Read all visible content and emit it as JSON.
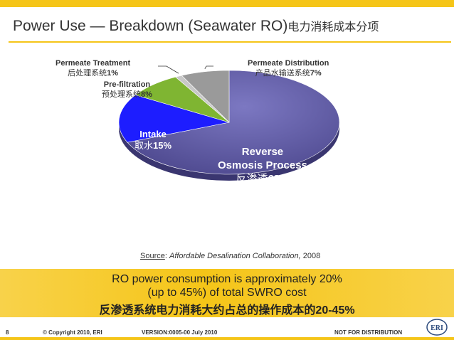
{
  "slide": {
    "title": "Power Use — Breakdown (Seawater RO)",
    "title_cn": "电力消耗成本分项",
    "source_label": "Source",
    "source_text": "Affordable Desalination Collaboration,",
    "source_year": "2008",
    "summary_line1": "RO power consumption is approximately 20%",
    "summary_line2": "(up to 45%) of total SWRO cost",
    "summary_line3": "反渗透系统电力消耗大约占总的操作成本的20-45%",
    "page_number": "8",
    "copyright": "© Copyright 2010, ERI",
    "version": "VERSION:0005-00 July 2010",
    "distribution": "NOT FOR DISTRIBUTION",
    "logo_text": "ERI",
    "colors": {
      "accent": "#f5c518",
      "ro": "#5f5aa0",
      "intake": "#1d1dff",
      "prefiltration": "#7fb532",
      "treatment": "#c8c8c8",
      "distribution": "#9a9a9a"
    }
  },
  "chart_data": {
    "type": "pie",
    "slices": [
      {
        "key": "ro",
        "label": "Reverse",
        "label2": "Osmosis Process",
        "label_cn": "反渗透",
        "value": 68,
        "color": "#5f5aa0"
      },
      {
        "key": "intake",
        "label": "Intake",
        "label_cn": "取水",
        "value": 15,
        "color": "#1d1dff"
      },
      {
        "key": "prefiltration",
        "label": "Pre-filtration",
        "label_cn": "预处理系统",
        "value": 8,
        "color": "#7fb532"
      },
      {
        "key": "treatment",
        "label": "Permeate Treatment",
        "label_cn": "后处理系统",
        "value": 1,
        "color": "#c8c8c8"
      },
      {
        "key": "distribution",
        "label": "Permeate Distribution",
        "label_cn": "产品水输送系统",
        "value": 7,
        "color": "#9a9a9a"
      }
    ],
    "value_suffix": "%"
  }
}
